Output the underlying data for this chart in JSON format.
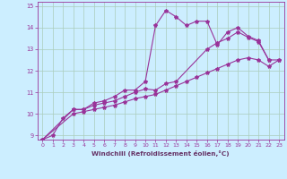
{
  "background_color": "#cceeff",
  "grid_color": "#aaccbb",
  "line_color": "#993399",
  "marker_color": "#993399",
  "xlabel": "Windchill (Refroidissement éolien,°C)",
  "xlabel_color": "#663366",
  "xlim": [
    -0.5,
    23.5
  ],
  "ylim": [
    8.8,
    15.2
  ],
  "yticks": [
    9,
    10,
    11,
    12,
    13,
    14,
    15
  ],
  "xticks": [
    0,
    1,
    2,
    3,
    4,
    5,
    6,
    7,
    8,
    9,
    10,
    11,
    12,
    13,
    14,
    15,
    16,
    17,
    18,
    19,
    20,
    21,
    22,
    23
  ],
  "series": [
    {
      "x": [
        0,
        1,
        2,
        3,
        4,
        5,
        6,
        7,
        8,
        9,
        10,
        11,
        12,
        13,
        14,
        15,
        16,
        17,
        18,
        19,
        20,
        21,
        22
      ],
      "y": [
        8.8,
        9.0,
        9.8,
        10.2,
        10.2,
        10.5,
        10.6,
        10.8,
        11.1,
        11.1,
        11.5,
        14.1,
        14.8,
        14.5,
        14.1,
        14.3,
        14.3,
        13.2,
        13.8,
        14.0,
        13.6,
        13.4,
        12.5
      ]
    },
    {
      "x": [
        0,
        3,
        4,
        5,
        6,
        7,
        8,
        9,
        10,
        11,
        12,
        13,
        16,
        17,
        18,
        19,
        20,
        21,
        22,
        23
      ],
      "y": [
        8.8,
        10.2,
        10.2,
        10.4,
        10.5,
        10.6,
        10.8,
        11.0,
        11.15,
        11.1,
        11.4,
        11.5,
        13.0,
        13.3,
        13.5,
        13.8,
        13.55,
        13.35,
        12.5,
        12.5
      ]
    },
    {
      "x": [
        0,
        3,
        4,
        5,
        6,
        7,
        8,
        9,
        10,
        11,
        12,
        13,
        14,
        15,
        16,
        17,
        18,
        19,
        20,
        21,
        22,
        23
      ],
      "y": [
        8.8,
        10.0,
        10.1,
        10.2,
        10.3,
        10.4,
        10.55,
        10.7,
        10.8,
        10.9,
        11.1,
        11.3,
        11.5,
        11.7,
        11.9,
        12.1,
        12.3,
        12.5,
        12.6,
        12.5,
        12.2,
        12.5
      ]
    }
  ]
}
